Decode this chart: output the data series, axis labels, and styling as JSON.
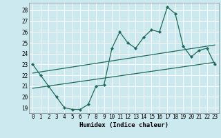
{
  "xlabel": "Humidex (Indice chaleur)",
  "bg_color": "#cce9f0",
  "grid_color": "#ffffff",
  "line_color": "#1a6b5a",
  "xlim": [
    -0.5,
    23.5
  ],
  "ylim": [
    18.5,
    28.7
  ],
  "yticks": [
    19,
    20,
    21,
    22,
    23,
    24,
    25,
    26,
    27,
    28
  ],
  "xticks": [
    0,
    1,
    2,
    3,
    4,
    5,
    6,
    7,
    8,
    9,
    10,
    11,
    12,
    13,
    14,
    15,
    16,
    17,
    18,
    19,
    20,
    21,
    22,
    23
  ],
  "main_x": [
    0,
    1,
    2,
    3,
    4,
    5,
    6,
    7,
    8,
    9,
    10,
    11,
    12,
    13,
    14,
    15,
    16,
    17,
    18,
    19,
    20,
    21,
    22,
    23
  ],
  "main_y": [
    23,
    22,
    21,
    20,
    19,
    18.85,
    18.85,
    19.3,
    21.0,
    21.1,
    24.5,
    26.0,
    25.0,
    24.5,
    25.5,
    26.2,
    26.0,
    28.3,
    27.7,
    24.7,
    23.7,
    24.3,
    24.5,
    23.0
  ],
  "trend1_x": [
    0,
    23
  ],
  "trend1_y": [
    22.2,
    24.8
  ],
  "trend2_x": [
    0,
    23
  ],
  "trend2_y": [
    20.8,
    23.2
  ],
  "xlabel_fontsize": 6.5,
  "tick_fontsize": 5.5
}
